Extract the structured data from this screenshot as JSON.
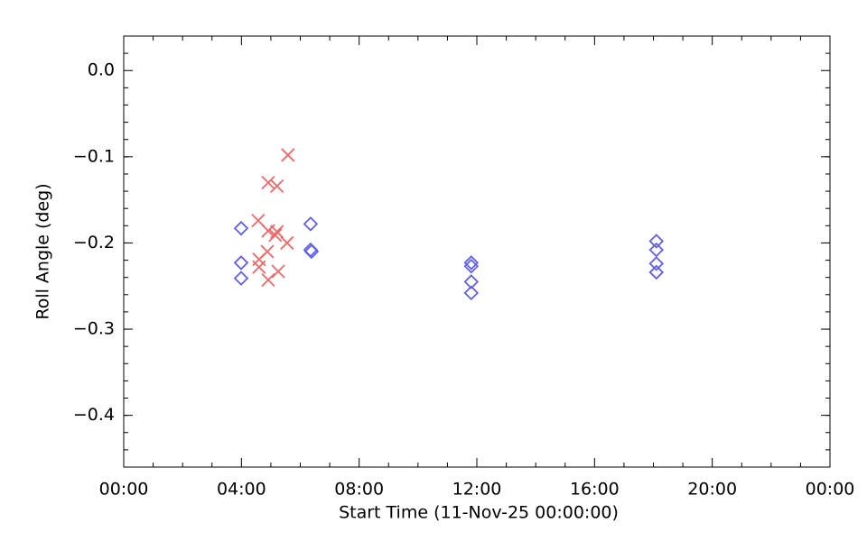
{
  "chart_data": {
    "type": "scatter",
    "x_label": "Start Time (11-Nov-25 00:00:00)",
    "y_label": "Roll Angle (deg)",
    "xlim": [
      0,
      24
    ],
    "xticks": [
      {
        "value": 0,
        "label": "00:00"
      },
      {
        "value": 4,
        "label": "04:00"
      },
      {
        "value": 8,
        "label": "08:00"
      },
      {
        "value": 12,
        "label": "12:00"
      },
      {
        "value": 16,
        "label": "16:00"
      },
      {
        "value": 20,
        "label": "20:00"
      },
      {
        "value": 24,
        "label": "00:00"
      }
    ],
    "x_minor_per_major": 4,
    "ylim": [
      -0.46,
      0.04
    ],
    "yticks": [
      {
        "value": 0,
        "label": "0.0"
      },
      {
        "value": -0.1,
        "label": "−0.1"
      },
      {
        "value": -0.2,
        "label": "−0.2"
      },
      {
        "value": -0.3,
        "label": "−0.3"
      },
      {
        "value": -0.4,
        "label": "−0.4"
      }
    ],
    "y_minor_per_major": 5,
    "series": [
      {
        "marker": "diamond",
        "color": "#6060e8",
        "x": [
          3.99,
          3.99,
          3.99,
          6.35,
          6.35,
          6.38,
          11.81,
          11.81,
          11.81,
          11.81,
          18.1,
          18.1,
          18.1,
          18.1
        ],
        "values": [
          -0.183,
          -0.223,
          -0.241,
          -0.178,
          -0.208,
          -0.21,
          -0.223,
          -0.227,
          -0.245,
          -0.258,
          -0.198,
          -0.208,
          -0.224,
          -0.234
        ]
      },
      {
        "marker": "x",
        "color": "#f06868",
        "x": [
          5.58,
          4.91,
          5.21,
          4.57,
          4.91,
          5.21,
          5.15,
          5.55,
          4.88,
          4.6,
          4.6,
          5.25,
          4.91
        ],
        "values": [
          -0.098,
          -0.13,
          -0.134,
          -0.174,
          -0.186,
          -0.187,
          -0.191,
          -0.2,
          -0.21,
          -0.219,
          -0.228,
          -0.233,
          -0.243
        ]
      }
    ]
  }
}
